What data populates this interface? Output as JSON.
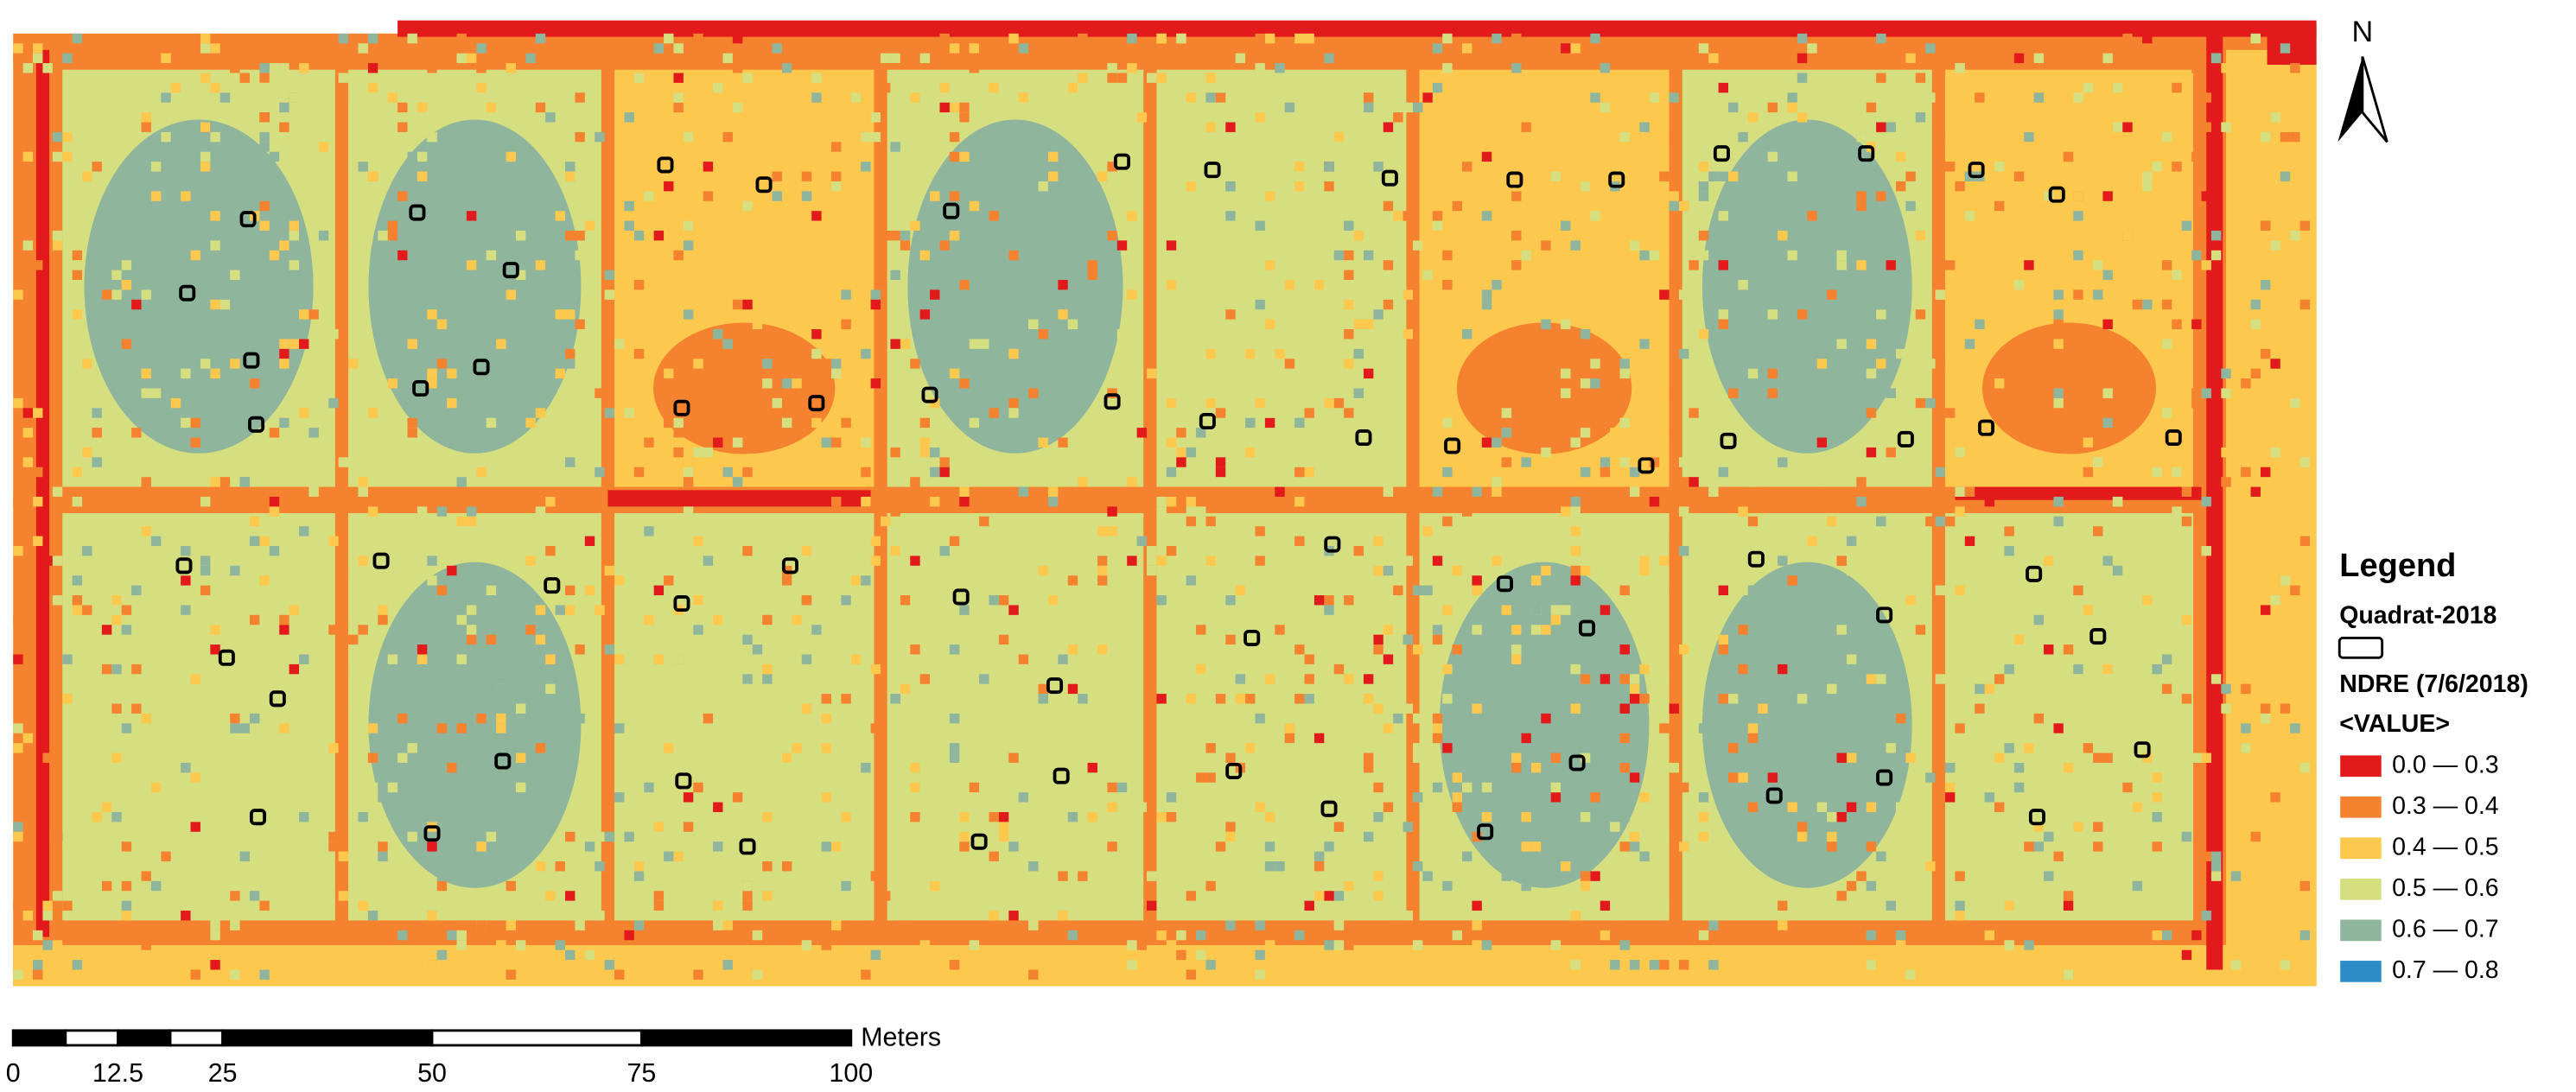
{
  "north_arrow": {
    "label": "N"
  },
  "legend": {
    "title": "Legend",
    "layers": [
      {
        "name": "Quadrat-2018"
      },
      {
        "name": "NDRE (7/6/2018)",
        "field": "<VALUE>",
        "classes": [
          {
            "label": "0.0 — 0.3",
            "color": "#e31a1c"
          },
          {
            "label": "0.3 — 0.4",
            "color": "#f5822f"
          },
          {
            "label": "0.4 — 0.5",
            "color": "#fcc84e"
          },
          {
            "label": "0.5 — 0.6",
            "color": "#d6df80"
          },
          {
            "label": "0.6 — 0.7",
            "color": "#8fb59d"
          },
          {
            "label": "0.7 — 0.8",
            "color": "#2c8dc6"
          }
        ]
      }
    ]
  },
  "scale_bar": {
    "ticks": [
      0,
      12.5,
      25,
      50,
      75,
      100
    ],
    "unit": "Meters"
  }
}
